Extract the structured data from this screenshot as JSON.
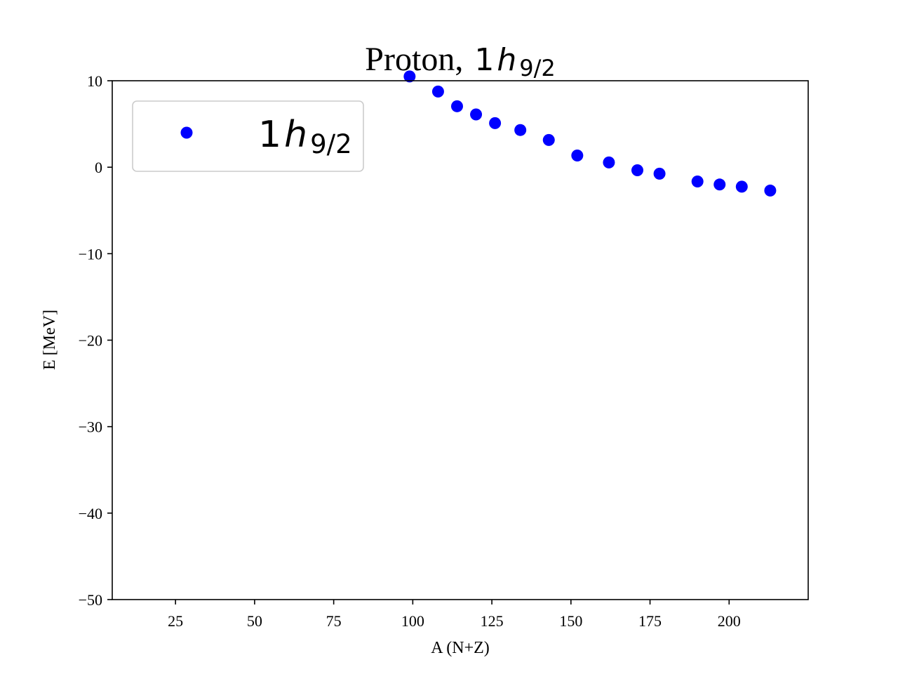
{
  "chart_data": {
    "type": "scatter",
    "title_prefix": "Proton,",
    "title_math": {
      "main": "1",
      "italic": "h",
      "sub": "9/2"
    },
    "xlabel": "A (N+Z)",
    "ylabel": "E [MeV]",
    "xlim": [
      5,
      225
    ],
    "ylim": [
      -50,
      10
    ],
    "xticks": [
      25,
      50,
      75,
      100,
      125,
      150,
      175,
      200
    ],
    "xtick_labels": [
      "25",
      "50",
      "75",
      "100",
      "125",
      "150",
      "175",
      "200"
    ],
    "yticks": [
      -50,
      -40,
      -30,
      -20,
      -10,
      0,
      10
    ],
    "ytick_labels": [
      "−50",
      "−40",
      "−30",
      "−20",
      "−10",
      "0",
      "10"
    ],
    "grid": false,
    "legend_position": "top-left",
    "series": [
      {
        "name": "1h9/2",
        "legend_math": {
          "main": "1",
          "italic": "h",
          "sub": "9/2"
        },
        "color": "#0000ff",
        "marker": "circle",
        "x": [
          99,
          108,
          114,
          120,
          126,
          134,
          143,
          152,
          162,
          171,
          178,
          190,
          197,
          204,
          213
        ],
        "y": [
          10.5,
          8.75,
          7.05,
          6.1,
          5.1,
          4.3,
          3.15,
          1.35,
          0.55,
          -0.35,
          -0.75,
          -1.65,
          -2.0,
          -2.25,
          -2.7
        ]
      }
    ]
  }
}
